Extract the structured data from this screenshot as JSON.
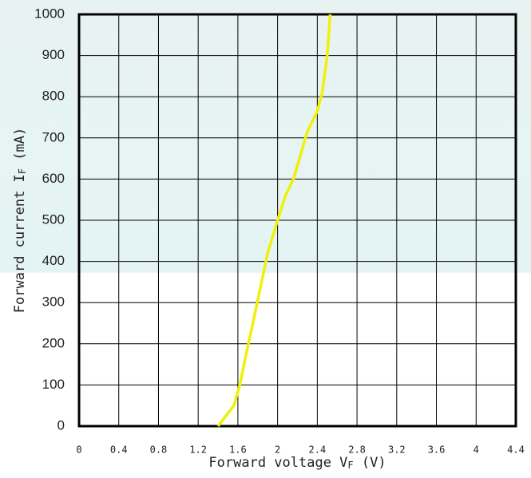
{
  "chart_data": {
    "type": "line",
    "xlabel": [
      "Forward voltage V",
      "F",
      " (V)"
    ],
    "ylabel": [
      "Forward current I",
      "F",
      " (mA)"
    ],
    "series": [
      {
        "color": "#f0f00a",
        "x": [
          1.4,
          1.56,
          1.62,
          1.67,
          1.76,
          1.9,
          2.0,
          2.08,
          2.16,
          2.3,
          2.4,
          2.45,
          2.5,
          2.53
        ],
        "values": [
          0,
          50,
          100,
          160,
          260,
          420,
          500,
          560,
          600,
          715,
          765,
          810,
          900,
          1000
        ]
      }
    ],
    "xlim": [
      0,
      4.4
    ],
    "xticks": [
      0,
      0.4,
      0.8,
      1.2,
      1.6,
      2,
      2.4,
      2.8,
      3.2,
      3.6,
      4,
      4.4
    ],
    "ylim": [
      0,
      1000
    ],
    "yticks": [
      0,
      100,
      200,
      300,
      400,
      500,
      600,
      700,
      800,
      900,
      1000
    ],
    "grid": true
  }
}
